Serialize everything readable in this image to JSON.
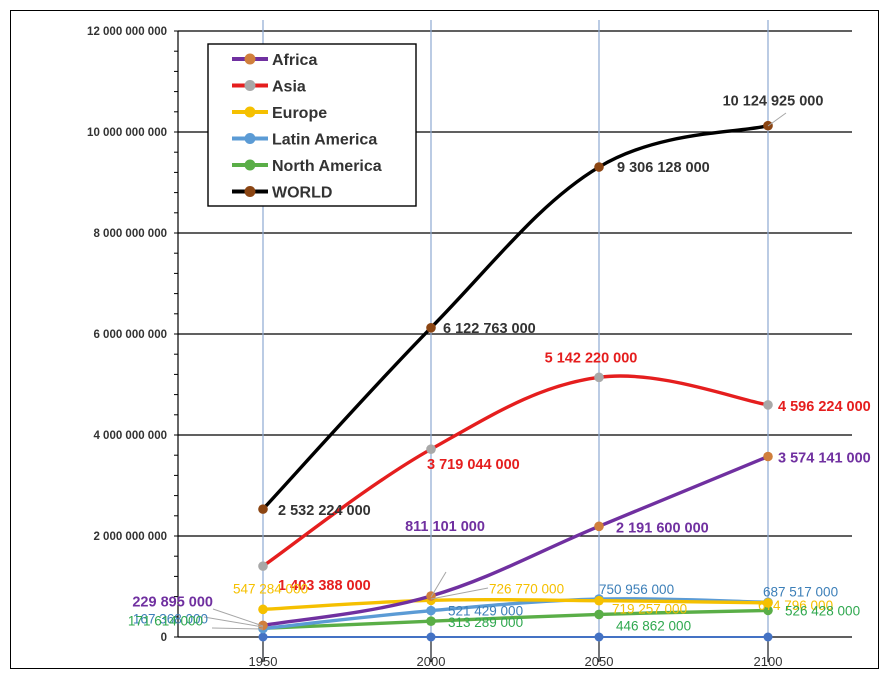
{
  "chart_data": {
    "type": "line",
    "title": "",
    "xlabel": "",
    "ylabel": "",
    "categories": [
      "1950",
      "2000",
      "2050",
      "2100"
    ],
    "ylim": [
      0,
      12000000000
    ],
    "y_ticks": [
      0,
      2000000000,
      4000000000,
      6000000000,
      8000000000,
      10000000000,
      12000000000
    ],
    "y_tick_labels": [
      "0",
      "2 000 000 000",
      "4 000 000 000",
      "6 000 000 000",
      "8 000 000 000",
      "10 000 000 000",
      "12 000 000 000"
    ],
    "grid": true,
    "legend_position": "top-left",
    "series": [
      {
        "name": "Africa",
        "color": "#7030A0",
        "marker_color": "#D07F3C",
        "values": [
          229895000,
          811101000,
          2191600000,
          3574141000
        ],
        "labels": [
          "229 895 000",
          "811 101 000",
          "2 191 600 000",
          "3 574 141 000"
        ]
      },
      {
        "name": "Asia",
        "color": "#E51E1E",
        "marker_color": "#A8A8A8",
        "values": [
          1403388000,
          3719044000,
          5142220000,
          4596224000
        ],
        "labels": [
          "1 403 388 000",
          "3 719 044 000",
          "5 142 220 000",
          "4 596 224 000"
        ]
      },
      {
        "name": "Europe",
        "color": "#F5C000",
        "marker_color": "#F5C000",
        "values": [
          547284000,
          726770000,
          719257000,
          674796000
        ],
        "labels": [
          "547 284 000",
          "726 770 000",
          "719 257 000",
          "674 796 000"
        ]
      },
      {
        "name": "Latin America",
        "color": "#5B9BD5",
        "marker_color": "#5B9BD5",
        "values": [
          167368000,
          521429000,
          750956000,
          687517000
        ],
        "labels": [
          "167 368 000",
          "521 429 000",
          "750 956 000",
          "687 517 000"
        ]
      },
      {
        "name": "North America",
        "color": "#5AAE47",
        "marker_color": "#5AAE47",
        "values": [
          171614000,
          313289000,
          446862000,
          526428000
        ],
        "labels": [
          "171 614 000",
          "313 289 000",
          "446 862 000",
          "526 428 000"
        ]
      },
      {
        "name": "WORLD",
        "color": "#000000",
        "marker_color": "#8B4513",
        "values": [
          2532224000,
          6122763000,
          9306128000,
          10124925000
        ],
        "labels": [
          "2 532 224 000",
          "6 122 763 000",
          "9 306 128 000",
          "10 124 925 000"
        ]
      }
    ],
    "base_series": {
      "color": "#4472C4",
      "values": [
        0,
        0,
        0,
        0
      ]
    },
    "label_colors": {
      "Africa": "#7030A0",
      "Asia": "#E51E1E",
      "Europe": "#F5C000",
      "Latin America": "#3C7FB8",
      "North America": "#2FA84F",
      "WORLD": "#333333"
    }
  }
}
